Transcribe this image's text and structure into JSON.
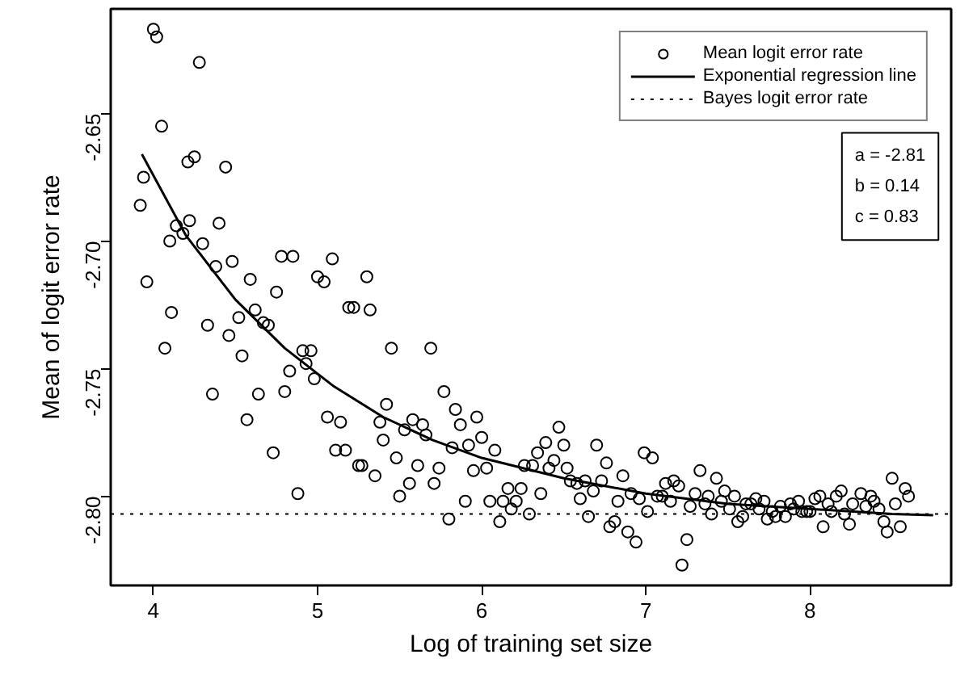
{
  "chart_data": {
    "type": "scatter",
    "xlabel": "Log of training set size",
    "ylabel": "Mean of logit error rate",
    "xlim": [
      3.74,
      8.86
    ],
    "ylim": [
      -2.835,
      -2.609
    ],
    "xticks": [
      4,
      5,
      6,
      7,
      8
    ],
    "yticks": [
      -2.65,
      {
        "value": -2.7,
        "label": "-2.70"
      },
      -2.75,
      {
        "value": -2.8,
        "label": "-2.80"
      }
    ],
    "grid": false,
    "legend": "top right",
    "series": [
      {
        "name": "Mean logit error rate",
        "marker": "circle",
        "color": "#000000",
        "x": [
          4.0,
          4.02,
          4.28,
          4.05,
          4.21,
          4.25,
          4.44,
          3.94,
          3.92,
          4.14,
          4.22,
          4.18,
          4.1,
          4.3,
          4.4,
          4.38,
          4.48,
          3.96,
          4.59,
          4.78,
          4.85,
          5.09,
          4.75,
          5.0,
          5.04,
          5.3,
          4.11,
          4.33,
          4.52,
          4.62,
          4.67,
          4.7,
          4.46,
          4.07,
          4.54,
          5.19,
          5.22,
          5.32,
          4.91,
          4.96,
          4.93,
          4.83,
          4.98,
          4.36,
          4.64,
          4.8,
          4.57,
          5.06,
          5.14,
          5.38,
          5.42,
          5.4,
          4.73,
          5.11,
          5.17,
          5.25,
          5.27,
          5.35,
          4.88,
          5.45,
          5.69,
          5.77,
          5.84,
          5.87,
          5.97,
          5.58,
          5.64,
          5.66,
          5.53,
          5.48,
          5.82,
          5.92,
          6.0,
          6.08,
          5.61,
          5.74,
          5.95,
          6.03,
          5.56,
          5.71,
          5.5,
          5.9,
          5.8,
          6.05,
          6.11,
          6.13,
          6.16,
          6.18,
          6.21,
          6.24,
          6.29,
          6.36,
          6.26,
          6.31,
          6.34,
          6.39,
          6.41,
          6.44,
          6.47,
          6.5,
          6.52,
          6.54,
          6.58,
          6.6,
          6.63,
          6.65,
          6.68,
          6.7,
          6.73,
          6.76,
          6.78,
          6.81,
          6.83,
          6.86,
          6.89,
          6.91,
          6.94,
          6.96,
          6.99,
          7.01,
          7.04,
          7.07,
          7.1,
          7.12,
          7.15,
          7.17,
          7.2,
          7.25,
          7.22,
          7.27,
          7.3,
          7.33,
          7.36,
          7.38,
          7.4,
          7.43,
          7.46,
          7.48,
          7.51,
          7.54,
          7.56,
          7.59,
          7.61,
          7.64,
          7.67,
          7.69,
          7.72,
          7.74,
          7.77,
          7.79,
          7.82,
          7.85,
          7.88,
          7.9,
          7.93,
          7.95,
          7.98,
          8.0,
          8.03,
          8.06,
          8.08,
          8.11,
          8.13,
          8.16,
          8.19,
          8.21,
          8.24,
          8.26,
          8.31,
          8.34,
          8.37,
          8.39,
          8.42,
          8.45,
          8.47,
          8.5,
          8.52,
          8.55,
          8.58,
          8.6
        ],
        "values": [
          -2.617,
          -2.62,
          -2.63,
          -2.655,
          -2.669,
          -2.667,
          -2.671,
          -2.675,
          -2.686,
          -2.694,
          -2.692,
          -2.697,
          -2.7,
          -2.701,
          -2.693,
          -2.71,
          -2.708,
          -2.716,
          -2.715,
          -2.706,
          -2.706,
          -2.707,
          -2.72,
          -2.714,
          -2.716,
          -2.714,
          -2.728,
          -2.733,
          -2.73,
          -2.727,
          -2.732,
          -2.733,
          -2.737,
          -2.742,
          -2.745,
          -2.726,
          -2.726,
          -2.727,
          -2.743,
          -2.743,
          -2.748,
          -2.751,
          -2.754,
          -2.76,
          -2.76,
          -2.759,
          -2.77,
          -2.769,
          -2.771,
          -2.771,
          -2.764,
          -2.778,
          -2.783,
          -2.782,
          -2.782,
          -2.788,
          -2.788,
          -2.792,
          -2.799,
          -2.742,
          -2.742,
          -2.759,
          -2.766,
          -2.772,
          -2.769,
          -2.77,
          -2.772,
          -2.776,
          -2.774,
          -2.785,
          -2.781,
          -2.78,
          -2.777,
          -2.782,
          -2.788,
          -2.789,
          -2.79,
          -2.789,
          -2.795,
          -2.795,
          -2.8,
          -2.802,
          -2.809,
          -2.802,
          -2.81,
          -2.802,
          -2.797,
          -2.805,
          -2.802,
          -2.797,
          -2.807,
          -2.799,
          -2.788,
          -2.788,
          -2.783,
          -2.779,
          -2.789,
          -2.786,
          -2.773,
          -2.78,
          -2.789,
          -2.794,
          -2.795,
          -2.801,
          -2.794,
          -2.808,
          -2.798,
          -2.78,
          -2.794,
          -2.787,
          -2.812,
          -2.81,
          -2.802,
          -2.792,
          -2.814,
          -2.799,
          -2.818,
          -2.801,
          -2.783,
          -2.806,
          -2.785,
          -2.8,
          -2.8,
          -2.795,
          -2.802,
          -2.794,
          -2.796,
          -2.817,
          -2.827,
          -2.804,
          -2.799,
          -2.79,
          -2.803,
          -2.8,
          -2.807,
          -2.793,
          -2.802,
          -2.798,
          -2.805,
          -2.8,
          -2.81,
          -2.808,
          -2.803,
          -2.803,
          -2.801,
          -2.805,
          -2.802,
          -2.809,
          -2.806,
          -2.808,
          -2.804,
          -2.808,
          -2.803,
          -2.805,
          -2.802,
          -2.806,
          -2.806,
          -2.806,
          -2.801,
          -2.8,
          -2.812,
          -2.803,
          -2.806,
          -2.8,
          -2.798,
          -2.807,
          -2.811,
          -2.803,
          -2.799,
          -2.804,
          -2.8,
          -2.802,
          -2.805,
          -2.81,
          -2.814,
          -2.793,
          -2.803,
          -2.812,
          -2.797,
          -2.8
        ]
      },
      {
        "name": "Exponential regression line",
        "type": "line",
        "color": "#000000",
        "line_style": "solid",
        "marker": "none",
        "x": [
          3.93,
          4.2,
          4.5,
          4.8,
          5.1,
          5.4,
          5.7,
          6.0,
          6.5,
          7.0,
          7.5,
          8.0,
          8.5,
          8.75
        ],
        "values": [
          -2.666,
          -2.698,
          -2.723,
          -2.742,
          -2.757,
          -2.769,
          -2.778,
          -2.785,
          -2.793,
          -2.799,
          -2.803,
          -2.805,
          -2.807,
          -2.8075
        ]
      }
    ],
    "ref_lines": [
      {
        "axis": "y",
        "value": -2.807,
        "label": "Bayes logit error rate",
        "color": "#000000",
        "line_style": "dotted"
      }
    ],
    "annotations": [
      "a = -2.81",
      "b = 0.14",
      "c = 0.83"
    ]
  }
}
